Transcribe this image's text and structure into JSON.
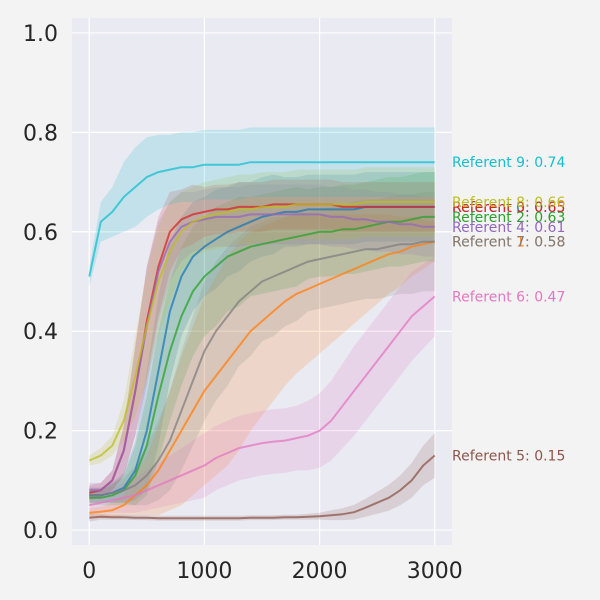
{
  "chart_data": {
    "type": "line",
    "title": "",
    "xlabel": "",
    "ylabel": "",
    "xlim": [
      -150,
      3150
    ],
    "ylim": [
      -0.03,
      1.03
    ],
    "x_ticks": [
      0,
      1000,
      2000,
      3000
    ],
    "x_tick_labels": [
      "0",
      "1000",
      "2000",
      "3000"
    ],
    "y_ticks": [
      0.0,
      0.2,
      0.4,
      0.6,
      0.8,
      1.0
    ],
    "y_tick_labels": [
      "0.0",
      "0.2",
      "0.4",
      "0.6",
      "0.8",
      "1.0"
    ],
    "grid": true,
    "legend": "none",
    "x": [
      0,
      100,
      200,
      300,
      400,
      500,
      600,
      700,
      800,
      900,
      1000,
      1100,
      1200,
      1300,
      1400,
      1500,
      1600,
      1700,
      1800,
      1900,
      2000,
      2100,
      2200,
      2300,
      2400,
      2500,
      2600,
      2700,
      2800,
      2900,
      3000
    ],
    "series": [
      {
        "name": "Referent 0",
        "color": "#1f77b4",
        "label": "Referent 0: 0.65",
        "values": [
          0.07,
          0.07,
          0.075,
          0.085,
          0.12,
          0.2,
          0.32,
          0.44,
          0.51,
          0.55,
          0.57,
          0.585,
          0.6,
          0.61,
          0.62,
          0.63,
          0.635,
          0.64,
          0.64,
          0.645,
          0.645,
          0.645,
          0.645,
          0.645,
          0.65,
          0.65,
          0.65,
          0.65,
          0.65,
          0.65,
          0.65
        ],
        "band": [
          0.015,
          0.015,
          0.02,
          0.03,
          0.06,
          0.12,
          0.15,
          0.14,
          0.12,
          0.11,
          0.1,
          0.1,
          0.09,
          0.09,
          0.08,
          0.08,
          0.08,
          0.07,
          0.07,
          0.07,
          0.07,
          0.07,
          0.07,
          0.07,
          0.07,
          0.07,
          0.07,
          0.07,
          0.07,
          0.07,
          0.07
        ]
      },
      {
        "name": "Referent 1",
        "color": "#ff7f0e",
        "label": "Referent 1: 0.58",
        "values": [
          0.035,
          0.037,
          0.04,
          0.05,
          0.07,
          0.09,
          0.12,
          0.16,
          0.2,
          0.24,
          0.28,
          0.31,
          0.34,
          0.37,
          0.4,
          0.42,
          0.44,
          0.46,
          0.475,
          0.485,
          0.495,
          0.505,
          0.515,
          0.525,
          0.535,
          0.545,
          0.555,
          0.56,
          0.57,
          0.575,
          0.58
        ],
        "band": [
          0.01,
          0.01,
          0.015,
          0.02,
          0.04,
          0.06,
          0.09,
          0.12,
          0.15,
          0.17,
          0.19,
          0.2,
          0.21,
          0.21,
          0.2,
          0.19,
          0.18,
          0.17,
          0.16,
          0.15,
          0.14,
          0.13,
          0.12,
          0.11,
          0.1,
          0.09,
          0.08,
          0.07,
          0.06,
          0.05,
          0.04
        ]
      },
      {
        "name": "Referent 2",
        "color": "#2ca02c",
        "label": "Referent 2: 0.63",
        "values": [
          0.065,
          0.065,
          0.07,
          0.08,
          0.11,
          0.17,
          0.27,
          0.36,
          0.43,
          0.48,
          0.51,
          0.53,
          0.55,
          0.56,
          0.57,
          0.575,
          0.58,
          0.585,
          0.59,
          0.595,
          0.6,
          0.6,
          0.605,
          0.605,
          0.61,
          0.615,
          0.62,
          0.62,
          0.625,
          0.63,
          0.63
        ],
        "band": [
          0.015,
          0.015,
          0.02,
          0.03,
          0.06,
          0.1,
          0.13,
          0.14,
          0.14,
          0.13,
          0.12,
          0.12,
          0.11,
          0.11,
          0.1,
          0.1,
          0.1,
          0.1,
          0.1,
          0.09,
          0.09,
          0.09,
          0.09,
          0.09,
          0.09,
          0.09,
          0.09,
          0.09,
          0.09,
          0.09,
          0.09
        ]
      },
      {
        "name": "Referent 3",
        "color": "#d62728",
        "label": "Referent 3: 0.65",
        "values": [
          0.075,
          0.08,
          0.1,
          0.16,
          0.28,
          0.42,
          0.53,
          0.6,
          0.625,
          0.635,
          0.64,
          0.645,
          0.645,
          0.65,
          0.65,
          0.65,
          0.655,
          0.655,
          0.655,
          0.655,
          0.655,
          0.655,
          0.65,
          0.65,
          0.65,
          0.65,
          0.65,
          0.65,
          0.65,
          0.65,
          0.65
        ],
        "band": [
          0.015,
          0.015,
          0.02,
          0.05,
          0.09,
          0.11,
          0.1,
          0.08,
          0.06,
          0.06,
          0.05,
          0.05,
          0.05,
          0.05,
          0.05,
          0.05,
          0.05,
          0.05,
          0.05,
          0.05,
          0.05,
          0.05,
          0.05,
          0.05,
          0.05,
          0.05,
          0.05,
          0.05,
          0.05,
          0.05,
          0.05
        ]
      },
      {
        "name": "Referent 4",
        "color": "#9467bd",
        "label": "Referent 4: 0.61",
        "values": [
          0.08,
          0.08,
          0.1,
          0.16,
          0.28,
          0.41,
          0.52,
          0.58,
          0.61,
          0.62,
          0.625,
          0.63,
          0.63,
          0.63,
          0.635,
          0.635,
          0.635,
          0.635,
          0.635,
          0.635,
          0.635,
          0.63,
          0.63,
          0.625,
          0.625,
          0.62,
          0.62,
          0.615,
          0.615,
          0.61,
          0.61
        ],
        "band": [
          0.015,
          0.015,
          0.02,
          0.05,
          0.09,
          0.12,
          0.1,
          0.08,
          0.07,
          0.06,
          0.06,
          0.06,
          0.06,
          0.06,
          0.06,
          0.06,
          0.06,
          0.06,
          0.06,
          0.06,
          0.06,
          0.06,
          0.06,
          0.06,
          0.06,
          0.06,
          0.06,
          0.06,
          0.06,
          0.06,
          0.06
        ]
      },
      {
        "name": "Referent 5",
        "color": "#8c564b",
        "label": "Referent 5: 0.15",
        "values": [
          0.025,
          0.027,
          0.026,
          0.026,
          0.025,
          0.025,
          0.024,
          0.024,
          0.024,
          0.024,
          0.024,
          0.024,
          0.024,
          0.024,
          0.025,
          0.025,
          0.025,
          0.026,
          0.026,
          0.027,
          0.028,
          0.03,
          0.032,
          0.036,
          0.045,
          0.055,
          0.065,
          0.08,
          0.1,
          0.13,
          0.15
        ],
        "band": [
          0.008,
          0.006,
          0.005,
          0.005,
          0.005,
          0.005,
          0.005,
          0.005,
          0.005,
          0.005,
          0.005,
          0.005,
          0.005,
          0.005,
          0.005,
          0.005,
          0.005,
          0.005,
          0.005,
          0.006,
          0.007,
          0.01,
          0.012,
          0.015,
          0.018,
          0.022,
          0.026,
          0.03,
          0.035,
          0.04,
          0.045
        ]
      },
      {
        "name": "Referent 6",
        "color": "#e377c2",
        "label": "Referent 6: 0.47",
        "values": [
          0.05,
          0.055,
          0.06,
          0.065,
          0.07,
          0.08,
          0.09,
          0.1,
          0.11,
          0.12,
          0.13,
          0.145,
          0.155,
          0.165,
          0.17,
          0.175,
          0.178,
          0.18,
          0.185,
          0.19,
          0.2,
          0.22,
          0.25,
          0.28,
          0.31,
          0.34,
          0.37,
          0.4,
          0.43,
          0.45,
          0.47
        ],
        "band": [
          0.02,
          0.02,
          0.025,
          0.03,
          0.035,
          0.04,
          0.045,
          0.05,
          0.055,
          0.06,
          0.065,
          0.065,
          0.065,
          0.065,
          0.065,
          0.065,
          0.065,
          0.065,
          0.065,
          0.07,
          0.075,
          0.08,
          0.085,
          0.09,
          0.09,
          0.09,
          0.09,
          0.09,
          0.09,
          0.085,
          0.08
        ]
      },
      {
        "name": "Referent 7",
        "color": "#7f7f7f",
        "label": "Referent 7: 0.58",
        "values": [
          0.07,
          0.07,
          0.075,
          0.08,
          0.09,
          0.11,
          0.14,
          0.18,
          0.24,
          0.3,
          0.36,
          0.4,
          0.43,
          0.46,
          0.48,
          0.5,
          0.51,
          0.52,
          0.53,
          0.54,
          0.545,
          0.55,
          0.555,
          0.56,
          0.565,
          0.565,
          0.57,
          0.575,
          0.575,
          0.58,
          0.58
        ],
        "band": [
          0.015,
          0.015,
          0.02,
          0.025,
          0.04,
          0.06,
          0.08,
          0.1,
          0.12,
          0.13,
          0.14,
          0.14,
          0.14,
          0.13,
          0.13,
          0.12,
          0.12,
          0.11,
          0.11,
          0.1,
          0.1,
          0.1,
          0.1,
          0.1,
          0.1,
          0.1,
          0.1,
          0.1,
          0.1,
          0.1,
          0.1
        ]
      },
      {
        "name": "Referent 8",
        "color": "#bcbd22",
        "label": "Referent 8: 0.66",
        "values": [
          0.14,
          0.15,
          0.17,
          0.22,
          0.31,
          0.41,
          0.5,
          0.56,
          0.6,
          0.62,
          0.63,
          0.635,
          0.64,
          0.645,
          0.645,
          0.65,
          0.65,
          0.65,
          0.655,
          0.655,
          0.655,
          0.655,
          0.655,
          0.655,
          0.66,
          0.66,
          0.66,
          0.66,
          0.66,
          0.66,
          0.66
        ],
        "band": [
          0.01,
          0.015,
          0.02,
          0.04,
          0.08,
          0.11,
          0.11,
          0.1,
          0.08,
          0.07,
          0.07,
          0.07,
          0.07,
          0.07,
          0.07,
          0.07,
          0.07,
          0.07,
          0.07,
          0.07,
          0.07,
          0.07,
          0.07,
          0.07,
          0.07,
          0.07,
          0.07,
          0.07,
          0.07,
          0.07,
          0.07
        ]
      },
      {
        "name": "Referent 9",
        "color": "#17becf",
        "label": "Referent 9: 0.74",
        "values": [
          0.51,
          0.62,
          0.64,
          0.67,
          0.69,
          0.71,
          0.72,
          0.725,
          0.73,
          0.73,
          0.735,
          0.735,
          0.735,
          0.735,
          0.74,
          0.74,
          0.74,
          0.74,
          0.74,
          0.74,
          0.74,
          0.74,
          0.74,
          0.74,
          0.74,
          0.74,
          0.74,
          0.74,
          0.74,
          0.74,
          0.74
        ],
        "band": [
          0.02,
          0.04,
          0.05,
          0.07,
          0.08,
          0.08,
          0.075,
          0.07,
          0.07,
          0.07,
          0.07,
          0.07,
          0.07,
          0.07,
          0.07,
          0.07,
          0.07,
          0.07,
          0.07,
          0.07,
          0.07,
          0.07,
          0.07,
          0.07,
          0.07,
          0.07,
          0.07,
          0.07,
          0.07,
          0.07,
          0.07
        ]
      }
    ]
  }
}
